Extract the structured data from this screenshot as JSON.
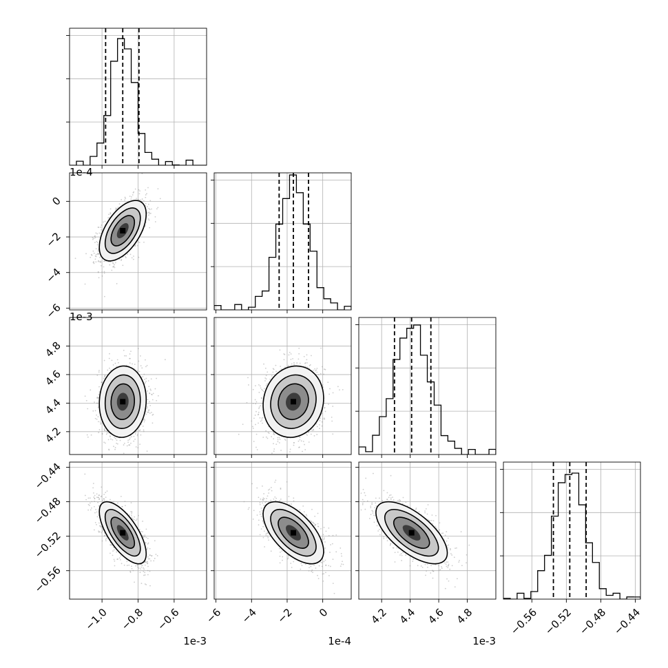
{
  "chart_data": {
    "type": "corner",
    "grid": true,
    "parameters": [
      {
        "offset_text": "1e-3",
        "range": [
          -1.18,
          -0.42
        ],
        "ticks": [
          -1.0,
          -0.8,
          -0.6
        ],
        "tick_labels": [
          "−1.0",
          "−0.8",
          "−0.6"
        ],
        "quantiles": [
          -0.98,
          -0.885,
          -0.795
        ],
        "center": -0.885,
        "sd": 0.065
      },
      {
        "offset_text": "1e-4",
        "range": [
          -6.1,
          1.6
        ],
        "ticks": [
          -6,
          -4,
          -2,
          0
        ],
        "tick_labels": [
          "−6",
          "−4",
          "−2",
          "0"
        ],
        "quantiles": [
          -2.45,
          -1.65,
          -0.8
        ],
        "center": -1.65,
        "sd": 0.85
      },
      {
        "offset_text": "1e-3",
        "range": [
          4.04,
          5.0
        ],
        "ticks": [
          4.2,
          4.4,
          4.6,
          4.8
        ],
        "tick_labels": [
          "4.2",
          "4.4",
          "4.6",
          "4.8"
        ],
        "quantiles": [
          4.29,
          4.41,
          4.545
        ],
        "center": 4.41,
        "sd": 0.125
      },
      {
        "offset_text": "",
        "range": [
          -0.593,
          -0.434
        ],
        "ticks": [
          -0.56,
          -0.52,
          -0.48,
          -0.44
        ],
        "tick_labels": [
          "−0.56",
          "−0.52",
          "−0.48",
          "−0.44"
        ],
        "quantiles": [
          -0.535,
          -0.516,
          -0.497
        ],
        "center": -0.516,
        "sd": 0.018
      }
    ],
    "correlations": [
      {
        "pair": [
          0,
          1
        ],
        "rho": 0.55
      },
      {
        "pair": [
          0,
          2
        ],
        "rho": 0.05
      },
      {
        "pair": [
          1,
          2
        ],
        "rho": 0.1
      },
      {
        "pair": [
          0,
          3
        ],
        "rho": -0.68
      },
      {
        "pair": [
          1,
          3
        ],
        "rho": -0.6
      },
      {
        "pair": [
          2,
          3
        ],
        "rho": -0.65
      }
    ],
    "histogram_bins": 20,
    "contour_levels_sigma": [
      0.5,
      1.0,
      1.5,
      2.0
    ],
    "histogram_ytick_fractions": [
      0.3,
      0.6,
      0.9
    ]
  }
}
